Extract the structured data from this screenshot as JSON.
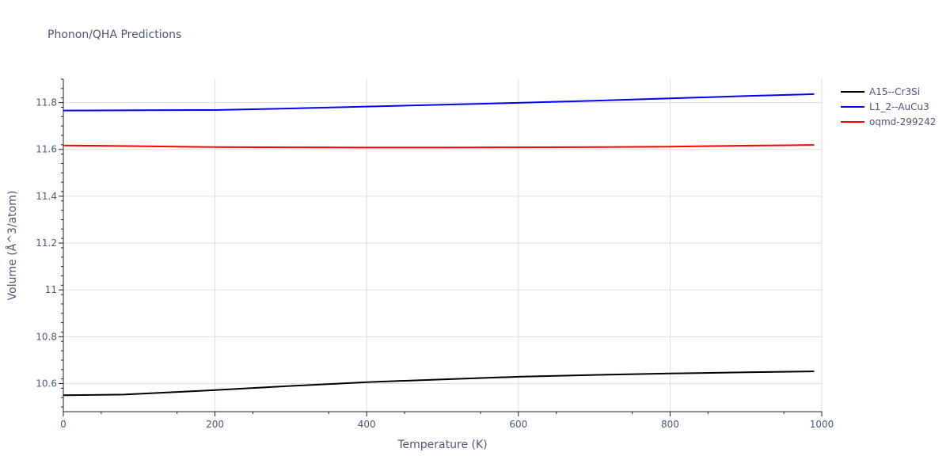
{
  "title": "Phonon/QHA Predictions",
  "chart_data": {
    "type": "line",
    "title": "Phonon/QHA Predictions",
    "xlabel": "Temperature (K)",
    "ylabel": "Volume (Å^3/atom)",
    "xlim": [
      0,
      1000
    ],
    "ylim": [
      10.48,
      11.9
    ],
    "xticks": [
      0,
      200,
      400,
      600,
      800,
      1000
    ],
    "xtick_labels": [
      "0",
      "200",
      "400",
      "600",
      "800",
      "1000"
    ],
    "yticks": [
      10.6,
      10.8,
      11,
      11.2,
      11.4,
      11.6,
      11.8
    ],
    "ytick_labels": [
      "10.6",
      "10.8",
      "11",
      "11.2",
      "11.4",
      "11.6",
      "11.8"
    ],
    "grid": true,
    "legend_position": "top-right",
    "series": [
      {
        "name": "A15--Cr3Si",
        "color": "#000000",
        "x": [
          0,
          80,
          200,
          300,
          400,
          500,
          600,
          700,
          800,
          900,
          990
        ],
        "y": [
          10.55,
          10.553,
          10.572,
          10.59,
          10.606,
          10.618,
          10.629,
          10.637,
          10.643,
          10.648,
          10.652
        ]
      },
      {
        "name": "L1_2--AuCu3",
        "color": "#0000ff",
        "x": [
          0,
          100,
          200,
          300,
          400,
          500,
          600,
          700,
          800,
          900,
          990
        ],
        "y": [
          11.766,
          11.767,
          11.768,
          11.775,
          11.783,
          11.791,
          11.799,
          11.808,
          11.818,
          11.828,
          11.836
        ]
      },
      {
        "name": "oqmd-299242",
        "color": "#ff0000",
        "x": [
          0,
          100,
          200,
          300,
          400,
          500,
          600,
          700,
          800,
          900,
          990
        ],
        "y": [
          11.617,
          11.614,
          11.61,
          11.609,
          11.608,
          11.608,
          11.609,
          11.61,
          11.612,
          11.616,
          11.619
        ]
      }
    ]
  }
}
